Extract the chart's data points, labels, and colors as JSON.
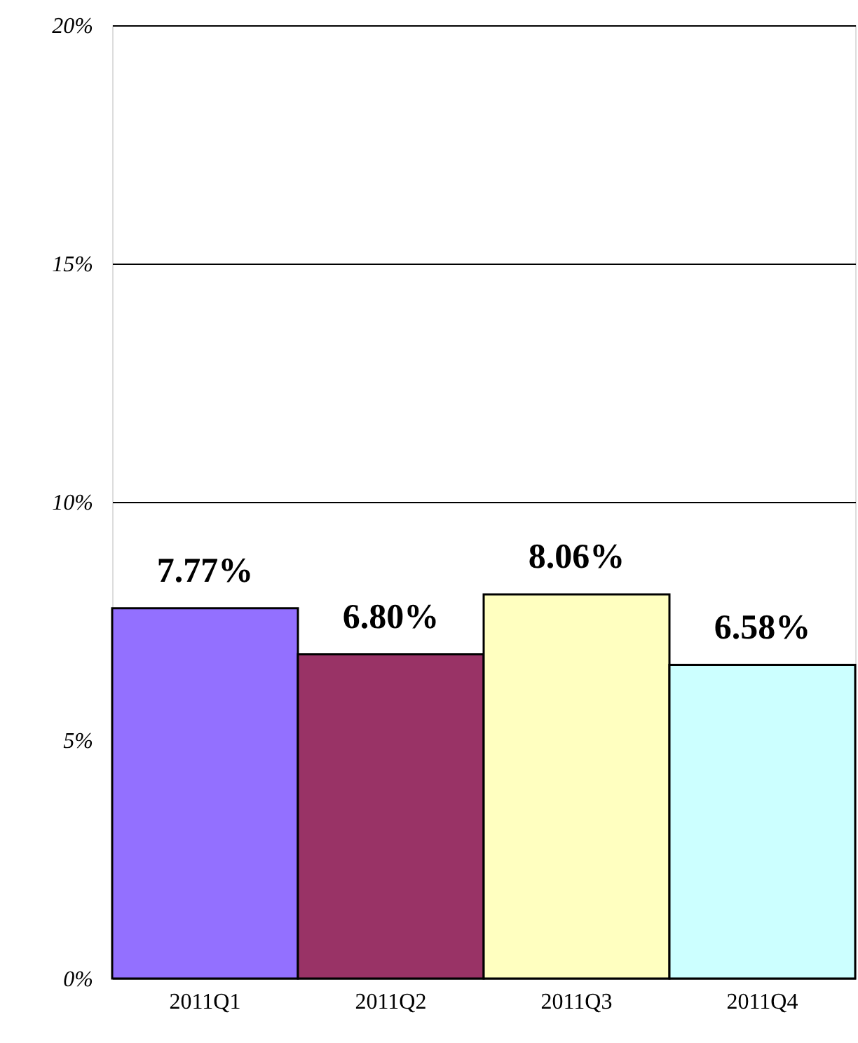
{
  "chart_data": {
    "type": "bar",
    "categories": [
      "2011Q1",
      "2011Q2",
      "2011Q3",
      "2011Q4"
    ],
    "values": [
      7.77,
      6.8,
      8.06,
      6.58
    ],
    "colors": [
      "#9370ff",
      "#993366",
      "#ffffc0",
      "#ccffff"
    ],
    "value_labels": [
      "7.77%",
      "6.80%",
      "8.06%",
      "6.58%"
    ],
    "ylim": [
      0,
      20
    ],
    "yticks": [
      {
        "value": 0,
        "label": "0%"
      },
      {
        "value": 5,
        "label": "5%"
      },
      {
        "value": 10,
        "label": "10%"
      },
      {
        "value": 15,
        "label": "15%"
      },
      {
        "value": 20,
        "label": "20%"
      }
    ],
    "grid": "y"
  }
}
